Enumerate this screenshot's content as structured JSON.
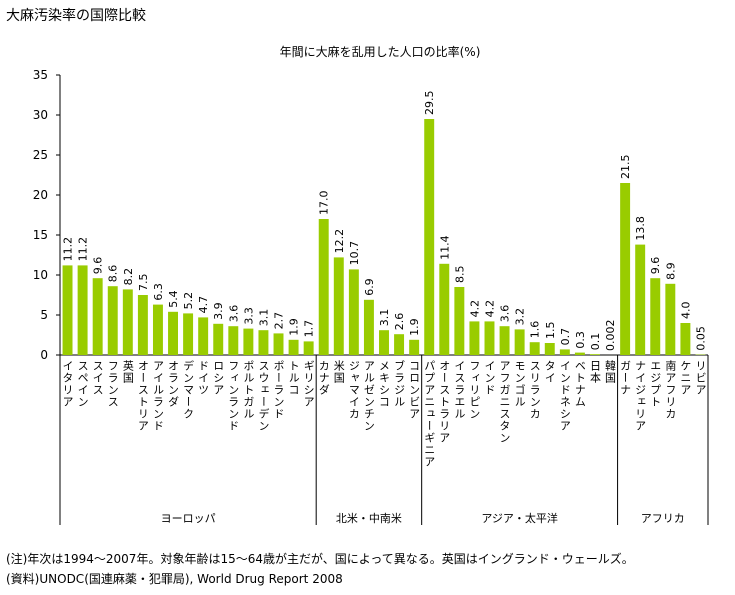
{
  "chart_data": {
    "type": "bar",
    "title": "大麻汚染率の国際比較",
    "subtitle": "年間に大麻を乱用した人口の比率(%)",
    "color": "#99cc00",
    "ylim": [
      0,
      35
    ],
    "yticks": [
      0,
      5,
      10,
      15,
      20,
      25,
      30,
      35
    ],
    "groups": [
      {
        "name": "ヨーロッパ",
        "categories": [
          "イタリア",
          "スペイン",
          "スイス",
          "フランス",
          "英国",
          "オーストリア",
          "アイルランド",
          "オランダ",
          "デンマーク",
          "ドイツ",
          "ロシア",
          "フィンランド",
          "ポルトガル",
          "スウェーデン",
          "ポーランド",
          "トルコ",
          "ギリシア"
        ],
        "values": [
          11.2,
          11.2,
          9.6,
          8.6,
          8.2,
          7.5,
          6.3,
          5.4,
          5.2,
          4.7,
          3.9,
          3.6,
          3.3,
          3.1,
          2.7,
          1.9,
          1.7
        ]
      },
      {
        "name": "北米・中南米",
        "categories": [
          "カナダ",
          "米国",
          "ジャマイカ",
          "アルゼンチン",
          "メキシコ",
          "ブラジル",
          "コロンビア"
        ],
        "values": [
          17,
          12.2,
          10.7,
          6.9,
          3.1,
          2.6,
          1.9
        ],
        "value_labels": [
          "17.0",
          "12.2",
          "10.7",
          "6.9",
          "3.1",
          "2.6",
          "1.9"
        ]
      },
      {
        "name": "アジア・太平洋",
        "categories": [
          "パプアニューギニア",
          "オーストラリア",
          "イスラエル",
          "フィリピン",
          "インド",
          "アフガニスタン",
          "モンゴル",
          "スリランカ",
          "タイ",
          "インドネシア",
          "ベトナム",
          "日本",
          "韓国"
        ],
        "values": [
          29.5,
          11.4,
          8.5,
          4.2,
          4.2,
          3.6,
          3.2,
          1.6,
          1.5,
          0.7,
          0.3,
          0.1,
          0.002
        ]
      },
      {
        "name": "アフリカ",
        "categories": [
          "ガーナ",
          "ナイジェリア",
          "エジプト",
          "南アフリカ",
          "ケニア",
          "リビア"
        ],
        "values": [
          21.5,
          13.8,
          9.6,
          8.9,
          4,
          0.05
        ],
        "value_labels": [
          "21.5",
          "13.8",
          "9.6",
          "8.9",
          "4.0",
          "0.05"
        ]
      }
    ],
    "notes": [
      "(注)年次は1994～2007年。対象年齢は15～64歳が主だが、国によって異なる。英国はイングランド・ウェールズ。",
      "(資料)UNODC(国連麻薬・犯罪局), World Drug Report 2008"
    ]
  }
}
